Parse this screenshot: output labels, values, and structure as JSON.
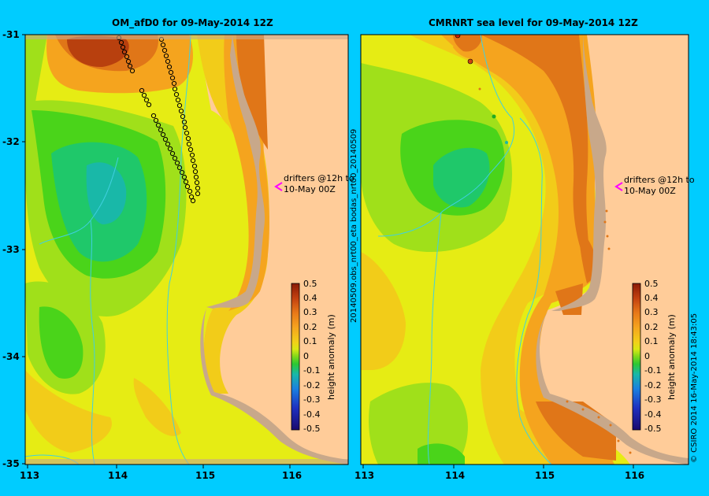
{
  "left_panel": {
    "title": "OM_afD0 for 09-May-2014 12Z",
    "drifter_note_line1": "drifters @12h to",
    "drifter_note_line2": "10-May 00Z",
    "colorbar_label": "height anomaly (m)"
  },
  "right_panel": {
    "title": "CMRNRT sea level  for 09-May-2014 12Z",
    "drifter_note_line1": "drifters @12h to",
    "drifter_note_line2": "10-May 00Z",
    "colorbar_label": "height anomaly (m)",
    "side_label": "20140509.obs_nrt00_eta    bodas_nrt00_20140509"
  },
  "footer_label": "© CSIRO 2014   16-May-2014 18:43:05",
  "x_ticks": [
    "113",
    "114",
    "115",
    "116"
  ],
  "y_ticks": [
    "-31",
    "-32",
    "-33",
    "-34",
    "-35"
  ],
  "colorbar_ticks": [
    "0.5",
    "0.4",
    "0.3",
    "0.2",
    "0.1",
    "0",
    "-0.1",
    "-0.2",
    "-0.3",
    "-0.4",
    "-0.5"
  ],
  "colors": {
    "background": "#00ccff",
    "land": "#ffcc99",
    "coast": "#c8a88a",
    "drifter_marker": "#ff00ff",
    "bathymetry_line": "#40d0e0"
  },
  "colorscale": [
    "#1a0a6e",
    "#1f2fb8",
    "#1a70e0",
    "#19b8c8",
    "#1fc86a",
    "#4ad41a",
    "#a0e01a",
    "#e6ec14",
    "#f2cc19",
    "#f5a41e",
    "#e07618",
    "#b8400e",
    "#8a1a06"
  ]
}
